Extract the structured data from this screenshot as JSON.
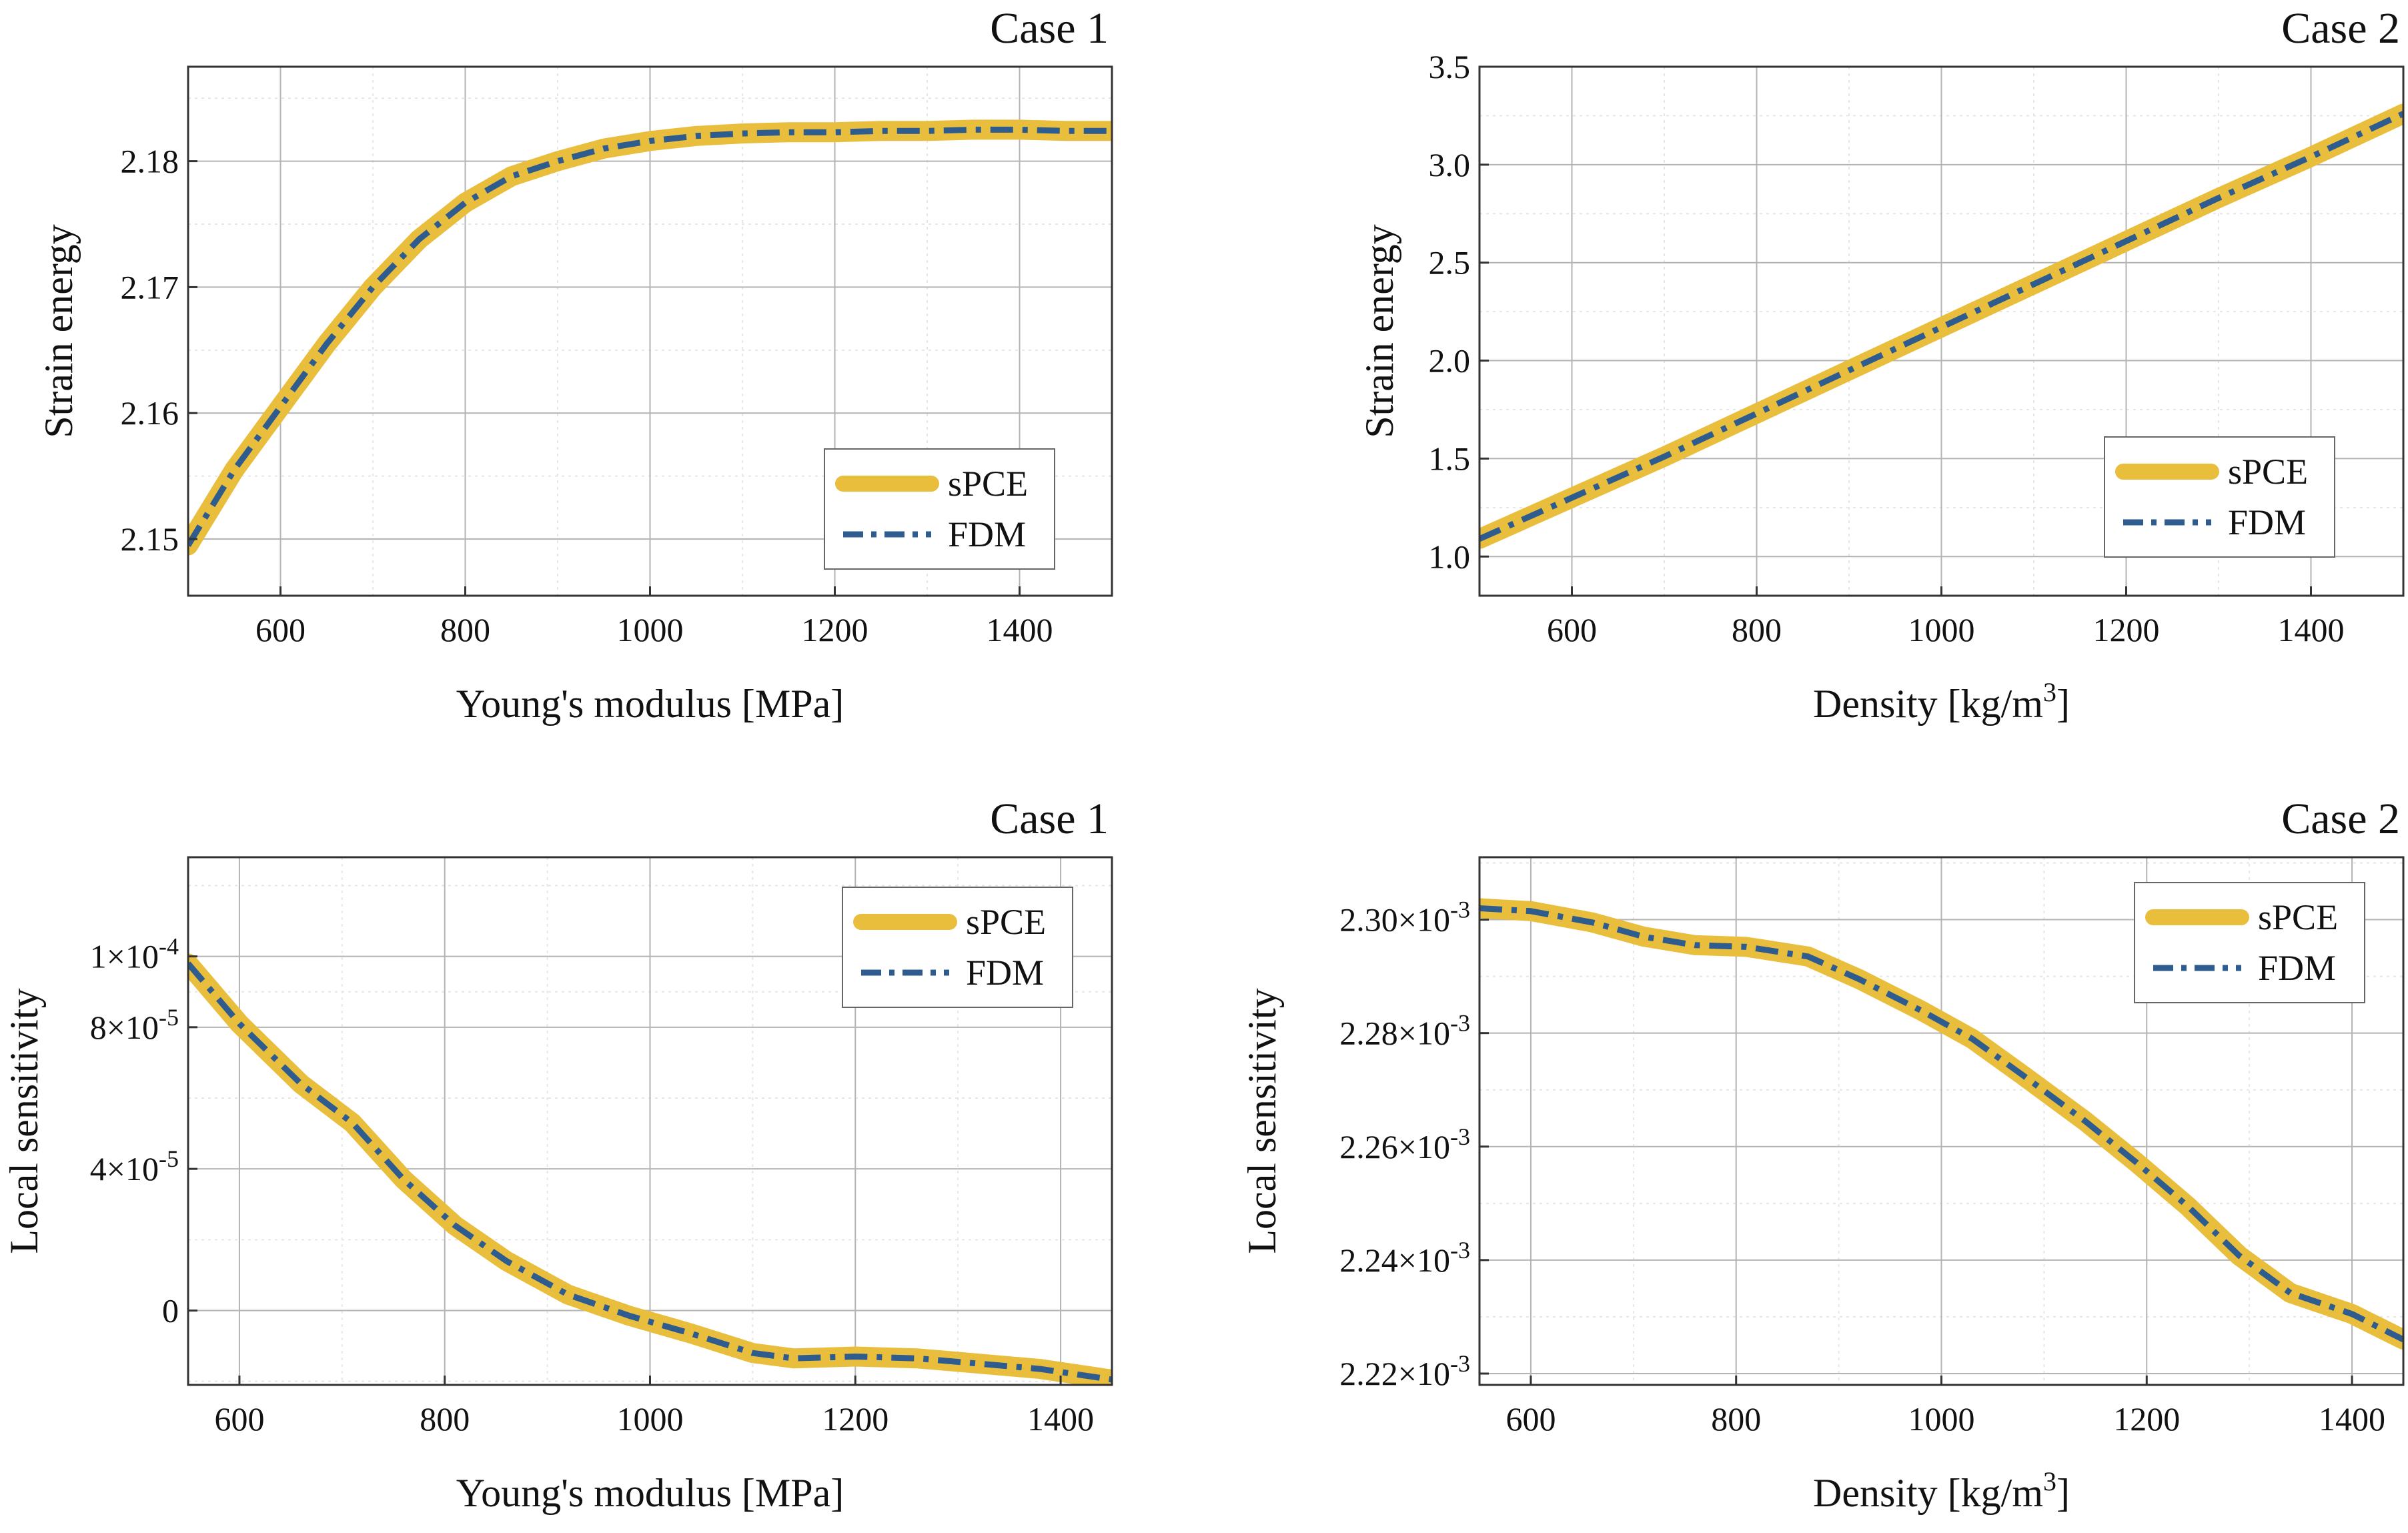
{
  "colors": {
    "spce": "#E9BE3C",
    "fdm": "#2F5C8F"
  },
  "legend": {
    "spce": "sPCE",
    "fdm": "FDM"
  },
  "chart_data": [
    {
      "type": "line",
      "title": "Case 1",
      "xlabel": "Young's modulus [MPa]",
      "ylabel": "Strain energy",
      "xlim": [
        500,
        1500
      ],
      "ylim": [
        2.1455,
        2.1875
      ],
      "xticks": [
        600,
        800,
        1000,
        1200,
        1400
      ],
      "xtick_labels": [
        "600",
        "800",
        "1000",
        "1200",
        "1400"
      ],
      "yticks": [
        2.15,
        2.16,
        2.17,
        2.18
      ],
      "ytick_labels": [
        "2.15",
        "2.16",
        "2.17",
        "2.18"
      ],
      "legend_position": "bottom-right",
      "grid": true,
      "series": [
        {
          "name": "sPCE",
          "style": "solid",
          "x": [
            500,
            550,
            600,
            650,
            700,
            750,
            800,
            850,
            900,
            950,
            1000,
            1050,
            1100,
            1150,
            1200,
            1250,
            1300,
            1350,
            1400,
            1450,
            1500
          ],
          "y": [
            2.1495,
            2.1555,
            2.1605,
            2.1655,
            2.17,
            2.1738,
            2.1767,
            2.1788,
            2.18,
            2.181,
            2.1816,
            2.182,
            2.1822,
            2.1823,
            2.1823,
            2.1824,
            2.1824,
            2.1825,
            2.1825,
            2.1824,
            2.1824
          ]
        },
        {
          "name": "FDM",
          "style": "dash-dot",
          "x": [
            500,
            550,
            600,
            650,
            700,
            750,
            800,
            850,
            900,
            950,
            1000,
            1050,
            1100,
            1150,
            1200,
            1250,
            1300,
            1350,
            1400,
            1450,
            1500
          ],
          "y": [
            2.1495,
            2.1555,
            2.1605,
            2.1655,
            2.17,
            2.1738,
            2.1767,
            2.1788,
            2.18,
            2.181,
            2.1816,
            2.182,
            2.1822,
            2.1823,
            2.1823,
            2.1824,
            2.1824,
            2.1825,
            2.1825,
            2.1824,
            2.1824
          ]
        }
      ]
    },
    {
      "type": "line",
      "title": "Case 2",
      "xlabel": "Density [kg/m",
      "xlabel_sup": "3",
      "xlabel_end": "]",
      "ylabel": "Strain energy",
      "xlim": [
        500,
        1500
      ],
      "ylim": [
        0.8,
        3.5
      ],
      "xticks": [
        600,
        800,
        1000,
        1200,
        1400
      ],
      "xtick_labels": [
        "600",
        "800",
        "1000",
        "1200",
        "1400"
      ],
      "yticks": [
        1.0,
        1.5,
        2.0,
        2.5,
        3.0,
        3.5
      ],
      "ytick_labels": [
        "1.0",
        "1.5",
        "2.0",
        "2.5",
        "3.0",
        "3.5"
      ],
      "legend_position": "bottom-right",
      "grid": true,
      "series": [
        {
          "name": "sPCE",
          "style": "solid",
          "x": [
            500,
            600,
            700,
            800,
            900,
            1000,
            1100,
            1200,
            1300,
            1400,
            1500
          ],
          "y": [
            1.09,
            1.3,
            1.51,
            1.73,
            1.95,
            2.17,
            2.39,
            2.61,
            2.83,
            3.04,
            3.26
          ]
        },
        {
          "name": "FDM",
          "style": "dash-dot",
          "x": [
            500,
            600,
            700,
            800,
            900,
            1000,
            1100,
            1200,
            1300,
            1400,
            1500
          ],
          "y": [
            1.09,
            1.3,
            1.51,
            1.73,
            1.95,
            2.17,
            2.39,
            2.61,
            2.83,
            3.04,
            3.26
          ]
        }
      ]
    },
    {
      "type": "line",
      "title": "Case 1",
      "xlabel": "Young's modulus [MPa]",
      "ylabel": "Local sensitivity",
      "xlim": [
        550,
        1450
      ],
      "ylim": [
        -2.1e-05,
        0.000128
      ],
      "xticks": [
        600,
        800,
        1000,
        1200,
        1400
      ],
      "xtick_labels": [
        "600",
        "800",
        "1000",
        "1200",
        "1400"
      ],
      "yticks": [
        0,
        4e-05,
        8e-05,
        0.0001
      ],
      "ytick_labels": [
        {
          "base": "0",
          "exp": ""
        },
        {
          "base": "4×10",
          "exp": "-5"
        },
        {
          "base": "8×10",
          "exp": "-5"
        },
        {
          "base": "1×10",
          "exp": "-4"
        }
      ],
      "legend_position": "top-right",
      "grid": true,
      "series": [
        {
          "name": "sPCE",
          "style": "solid",
          "x": [
            550,
            600,
            660,
            710,
            760,
            810,
            860,
            920,
            980,
            1040,
            1100,
            1140,
            1200,
            1260,
            1320,
            1380,
            1450
          ],
          "y": [
            9.8e-05,
            8.1e-05,
            6.4e-05,
            5.3e-05,
            3.7e-05,
            2.4e-05,
            1.4e-05,
            4.5e-06,
            -1.5e-06,
            -6.5e-06,
            -1.2e-05,
            -1.35e-05,
            -1.3e-05,
            -1.35e-05,
            -1.5e-05,
            -1.65e-05,
            -1.95e-05
          ]
        },
        {
          "name": "FDM",
          "style": "dash-dot",
          "x": [
            550,
            600,
            660,
            710,
            760,
            810,
            860,
            920,
            980,
            1040,
            1100,
            1140,
            1200,
            1260,
            1320,
            1380,
            1450
          ],
          "y": [
            9.8e-05,
            8.1e-05,
            6.4e-05,
            5.3e-05,
            3.7e-05,
            2.4e-05,
            1.4e-05,
            4.5e-06,
            -1.5e-06,
            -6.5e-06,
            -1.2e-05,
            -1.35e-05,
            -1.3e-05,
            -1.35e-05,
            -1.5e-05,
            -1.65e-05,
            -1.95e-05
          ]
        }
      ]
    },
    {
      "type": "line",
      "title": "Case 2",
      "xlabel": "Density [kg/m",
      "xlabel_sup": "3",
      "xlabel_end": "]",
      "ylabel": "Local sensitivity",
      "xlim": [
        550,
        1450
      ],
      "ylim": [
        0.002218,
        0.002311
      ],
      "xticks": [
        600,
        800,
        1000,
        1200,
        1400
      ],
      "xtick_labels": [
        "600",
        "800",
        "1000",
        "1200",
        "1400"
      ],
      "yticks": [
        0.00222,
        0.00224,
        0.00226,
        0.00228,
        0.0023
      ],
      "ytick_labels": [
        {
          "base": "2.22×10",
          "exp": "-3"
        },
        {
          "base": "2.24×10",
          "exp": "-3"
        },
        {
          "base": "2.26×10",
          "exp": "-3"
        },
        {
          "base": "2.28×10",
          "exp": "-3"
        },
        {
          "base": "2.30×10",
          "exp": "-3"
        }
      ],
      "legend_position": "top-right",
      "grid": true,
      "series": [
        {
          "name": "sPCE",
          "style": "solid",
          "x": [
            550,
            600,
            660,
            710,
            760,
            810,
            870,
            920,
            980,
            1030,
            1080,
            1140,
            1190,
            1240,
            1290,
            1340,
            1400,
            1450
          ],
          "y": [
            0.002302,
            0.0023015,
            0.0022995,
            0.002297,
            0.0022955,
            0.0022952,
            0.0022935,
            0.0022895,
            0.002284,
            0.002279,
            0.0022725,
            0.0022645,
            0.0022572,
            0.0022495,
            0.0022408,
            0.0022342,
            0.0022305,
            0.002226
          ]
        },
        {
          "name": "FDM",
          "style": "dash-dot",
          "x": [
            550,
            600,
            660,
            710,
            760,
            810,
            870,
            920,
            980,
            1030,
            1080,
            1140,
            1190,
            1240,
            1290,
            1340,
            1400,
            1450
          ],
          "y": [
            0.002302,
            0.0023015,
            0.0022995,
            0.002297,
            0.0022955,
            0.0022952,
            0.0022935,
            0.0022895,
            0.002284,
            0.002279,
            0.0022725,
            0.0022645,
            0.0022572,
            0.0022495,
            0.0022408,
            0.0022342,
            0.0022305,
            0.002226
          ]
        }
      ]
    }
  ]
}
